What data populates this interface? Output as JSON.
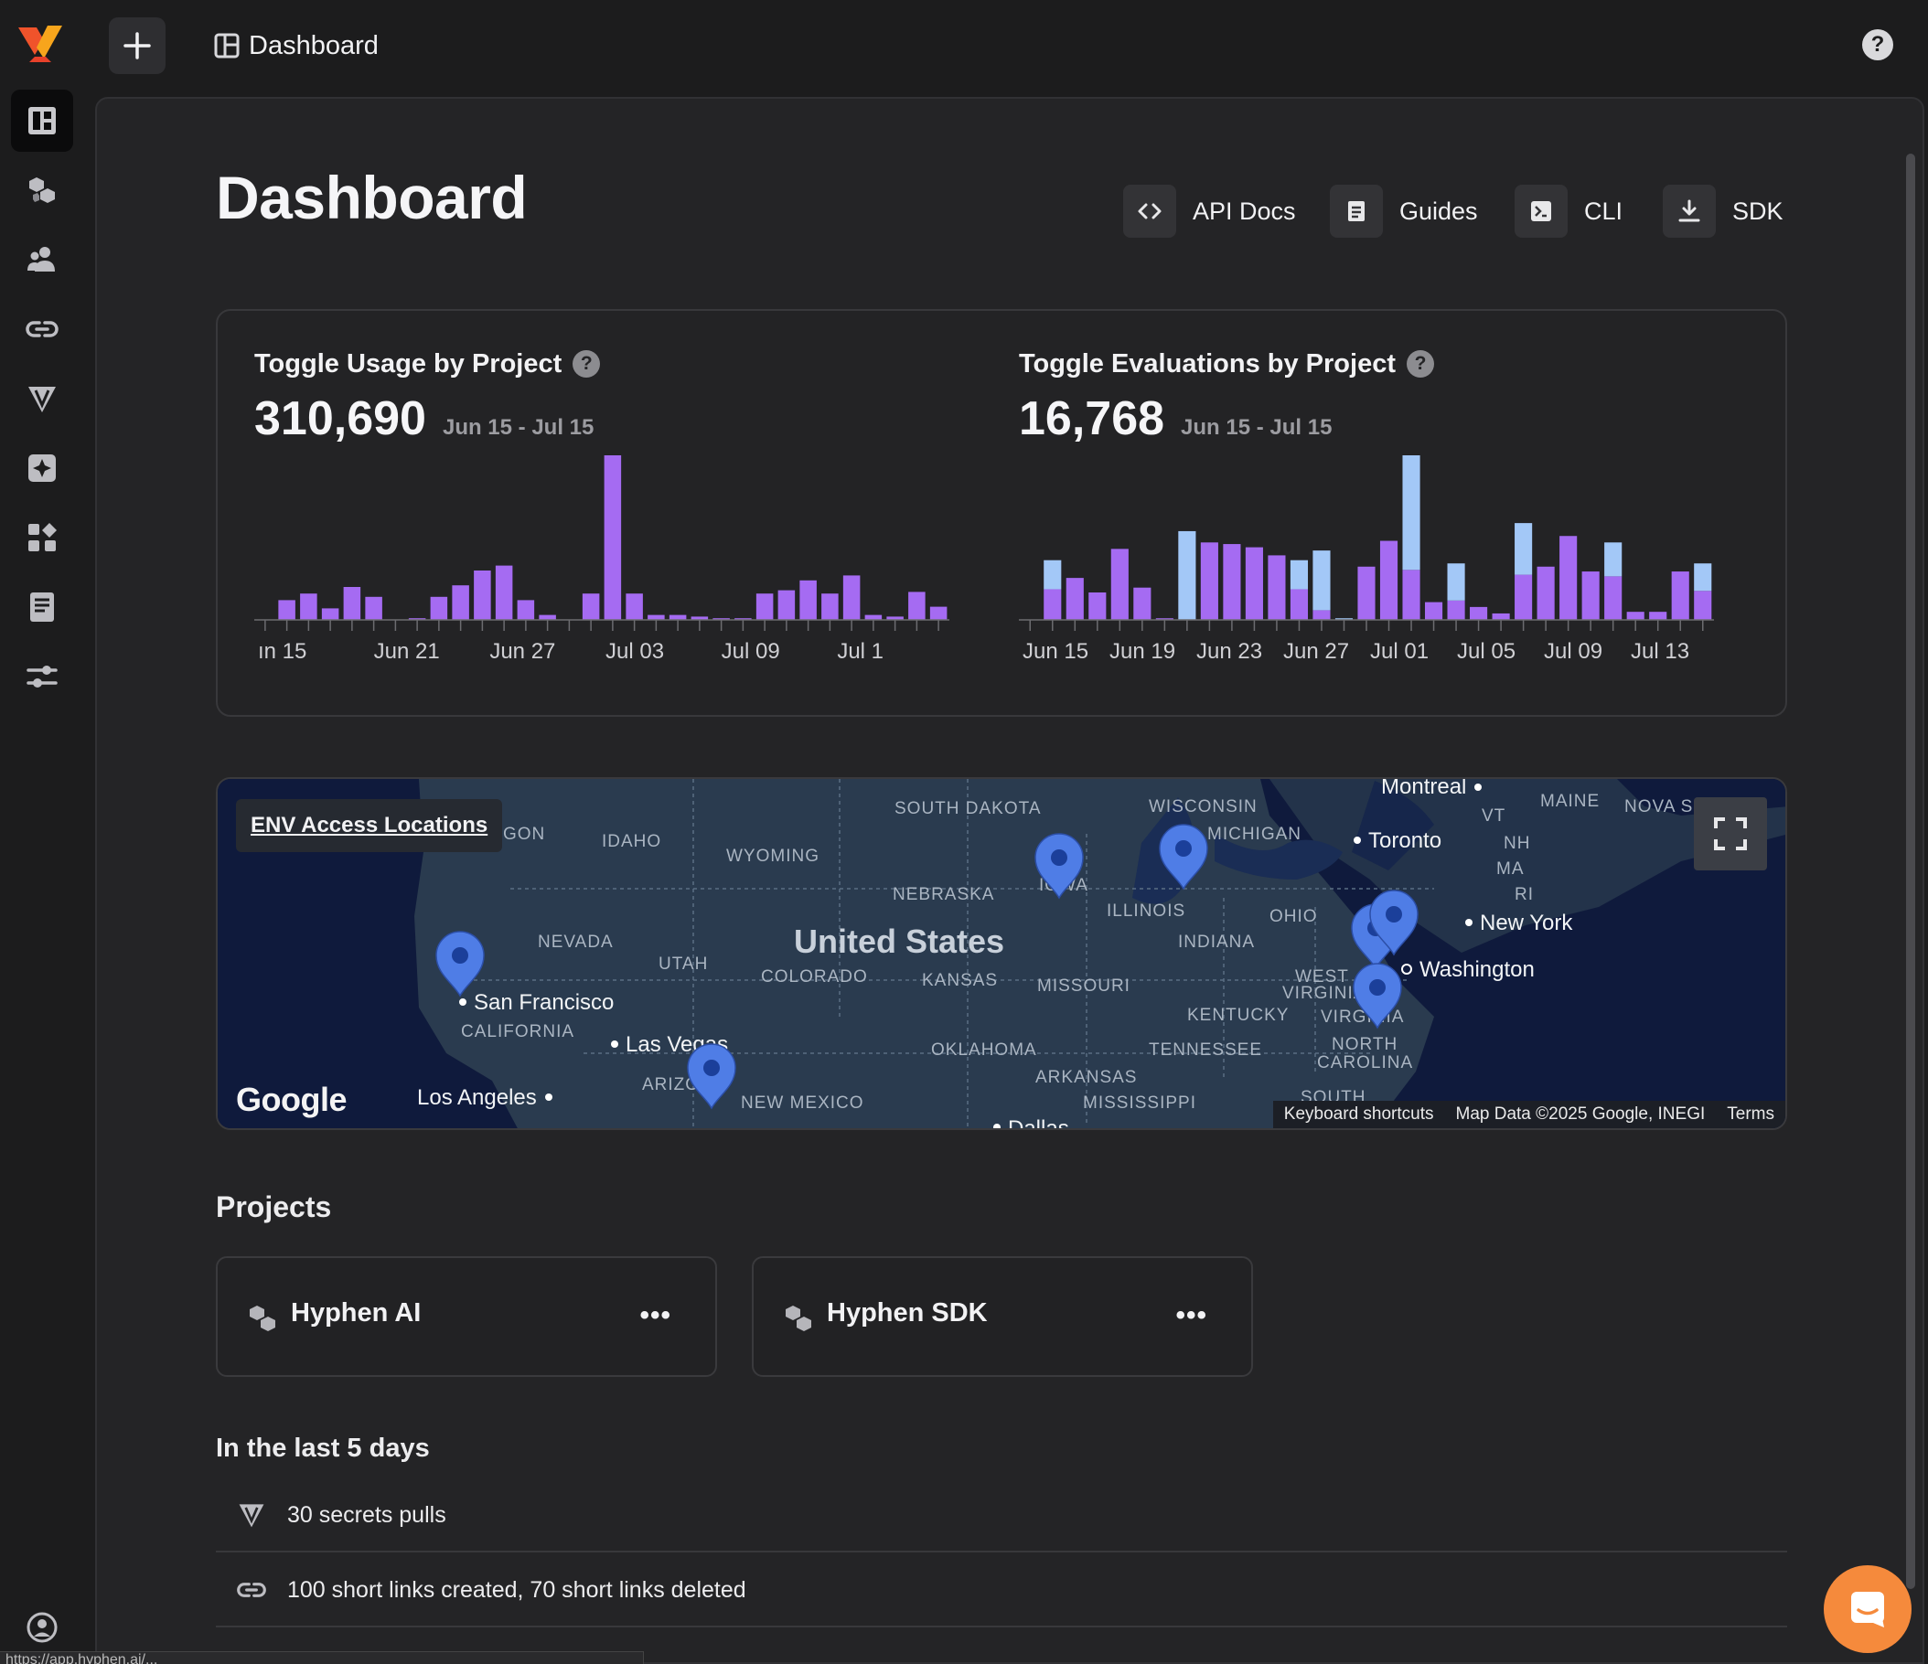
{
  "topbar": {
    "breadcrumb": "Dashboard"
  },
  "page": {
    "title": "Dashboard",
    "toolbar": [
      {
        "label": "API Docs",
        "icon": "code-icon"
      },
      {
        "label": "Guides",
        "icon": "document-icon"
      },
      {
        "label": "CLI",
        "icon": "terminal-icon"
      },
      {
        "label": "SDK",
        "icon": "download-icon"
      }
    ]
  },
  "sidebar": {
    "items": [
      {
        "name": "dashboard",
        "icon": "dashboard-icon",
        "active": true
      },
      {
        "name": "projects",
        "icon": "cubes-icon"
      },
      {
        "name": "team",
        "icon": "users-icon"
      },
      {
        "name": "links",
        "icon": "link-icon"
      },
      {
        "name": "secrets",
        "icon": "vault-icon"
      },
      {
        "name": "toggles",
        "icon": "toggle-icon"
      },
      {
        "name": "apps",
        "icon": "grid-icon"
      },
      {
        "name": "docs",
        "icon": "document-icon"
      },
      {
        "name": "settings",
        "icon": "sliders-icon"
      }
    ]
  },
  "chart_data": [
    {
      "type": "bar",
      "title": "Toggle Usage by Project",
      "total": "310,690",
      "range": "Jun 15 - Jul 15",
      "x_tick_labels": [
        "ın 15",
        "Jun 21",
        "Jun 27",
        "Jul 03",
        "Jul 09",
        "Jul 1"
      ],
      "series": [
        {
          "values": [
            0,
            12,
            16,
            7,
            20,
            14,
            0,
            1,
            14,
            21,
            30,
            33,
            12,
            3,
            0,
            16,
            100,
            16,
            3,
            3,
            2,
            1,
            1,
            16,
            18,
            24,
            16,
            27,
            3,
            2,
            17,
            8
          ]
        }
      ],
      "colors": {
        "primary": "#a56bf2"
      }
    },
    {
      "type": "bar",
      "title": "Toggle Evaluations by Project",
      "total": "16,768",
      "range": "Jun 15 - Jul 15",
      "x_tick_labels": [
        "Jun 15",
        "Jun 19",
        "Jun 23",
        "Jun 27",
        "Jul 01",
        "Jul 05",
        "Jul 09",
        "Jul 13"
      ],
      "series": [
        {
          "values": [
            0,
            19,
            26,
            17,
            44,
            20,
            1,
            0,
            48,
            47,
            45,
            40,
            19,
            6,
            0,
            33,
            49,
            31,
            11,
            12,
            8,
            4,
            28,
            33,
            52,
            30,
            27,
            5,
            5,
            30,
            18
          ]
        },
        {
          "values": [
            0,
            18,
            0,
            0,
            0,
            0,
            0,
            55,
            0,
            0,
            0,
            0,
            18,
            37,
            1,
            0,
            0,
            71,
            0,
            23,
            0,
            0,
            32,
            0,
            0,
            0,
            21,
            0,
            0,
            0,
            17
          ]
        }
      ],
      "colors": {
        "primary": "#a56bf2",
        "secondary": "#a3c8f7"
      }
    }
  ],
  "map": {
    "label": "ENV Access Locations",
    "provider": "Google",
    "footer": [
      "Keyboard shortcuts",
      "Map Data ©2025 Google, INEGI",
      "Terms"
    ],
    "country_label": "United States",
    "cities": [
      "Montreal",
      "Toronto",
      "New York",
      "Washington",
      "San Francisco",
      "Las Vegas",
      "Los Angeles",
      "Dallas"
    ],
    "states": [
      "SOUTH DAKOTA",
      "WISCONSIN",
      "MICHIGAN",
      "MAINE",
      "NOVA S",
      "VT",
      "NH",
      "MA",
      "RI",
      "GON",
      "IDAHO",
      "WYOMING",
      "NEBRASKA",
      "IOWA",
      "ILLINOIS",
      "OHIO",
      "INDIANA",
      "NEVADA",
      "UTAH",
      "COLORADO",
      "KANSAS",
      "MISSOURI",
      "WEST",
      "VIRGINIA",
      "KENTUCKY",
      "VIRGINIA",
      "CALIFORNIA",
      "OKLAHOMA",
      "TENNESSEE",
      "NORTH",
      "CAROLINA",
      "ARKANSAS",
      "ARIZONA",
      "NEW MEXICO",
      "MISSISSIPPI",
      "SOUTH"
    ]
  },
  "projects": {
    "title": "Projects",
    "items": [
      {
        "name": "Hyphen AI",
        "more": "•••"
      },
      {
        "name": "Hyphen SDK",
        "more": "•••"
      }
    ]
  },
  "activity": {
    "title": "In the last 5 days",
    "rows": [
      {
        "text": "30 secrets pulls",
        "icon": "vault-icon"
      },
      {
        "text": "100 short links created, 70 short links deleted",
        "icon": "link-icon"
      }
    ]
  },
  "status_bar": "https://app.hyphen.ai/..."
}
